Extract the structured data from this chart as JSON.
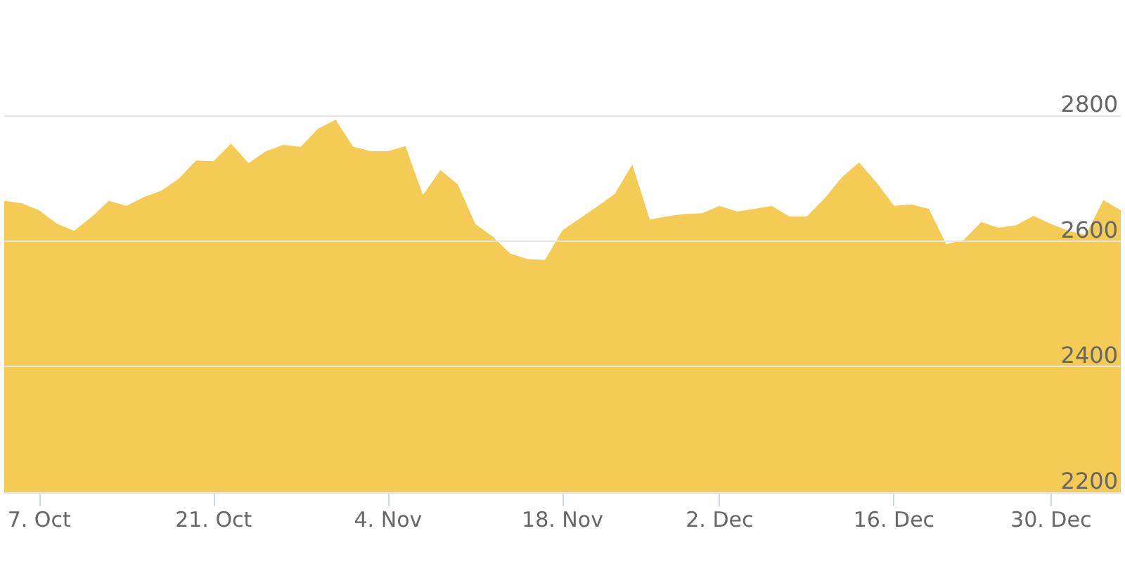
{
  "chart_data": {
    "type": "area",
    "categories": [
      null,
      null,
      "7. Oct",
      null,
      null,
      null,
      null,
      null,
      null,
      null,
      null,
      null,
      "21. Oct",
      null,
      null,
      null,
      null,
      null,
      null,
      null,
      null,
      null,
      "4. Nov",
      null,
      null,
      null,
      null,
      null,
      null,
      null,
      null,
      null,
      "18. Nov",
      null,
      null,
      null,
      null,
      null,
      null,
      null,
      null,
      "2. Dec",
      null,
      null,
      null,
      null,
      null,
      null,
      null,
      null,
      null,
      "16. Dec",
      null,
      null,
      null,
      null,
      null,
      null,
      null,
      null,
      "30. Dec",
      null,
      null,
      null,
      null
    ],
    "values": [
      2664,
      2660,
      2649,
      2628,
      2616,
      2638,
      2664,
      2656,
      2670,
      2680,
      2699,
      2728,
      2727,
      2755,
      2724,
      2743,
      2753,
      2750,
      2779,
      2793,
      2750,
      2743,
      2743,
      2751,
      2673,
      2713,
      2690,
      2627,
      2607,
      2580,
      2571,
      2570,
      2617,
      2636,
      2655,
      2675,
      2722,
      2634,
      2639,
      2643,
      2644,
      2656,
      2647,
      2651,
      2656,
      2639,
      2639,
      2667,
      2701,
      2725,
      2693,
      2656,
      2658,
      2651,
      2595,
      2602,
      2630,
      2621,
      2625,
      2640,
      2627,
      2616,
      2610,
      2665,
      2649
    ],
    "color": "#f4cb55",
    "ylim": [
      2200,
      2800
    ],
    "yticks": [
      2200,
      2400,
      2600,
      2800
    ],
    "grid": "y"
  }
}
